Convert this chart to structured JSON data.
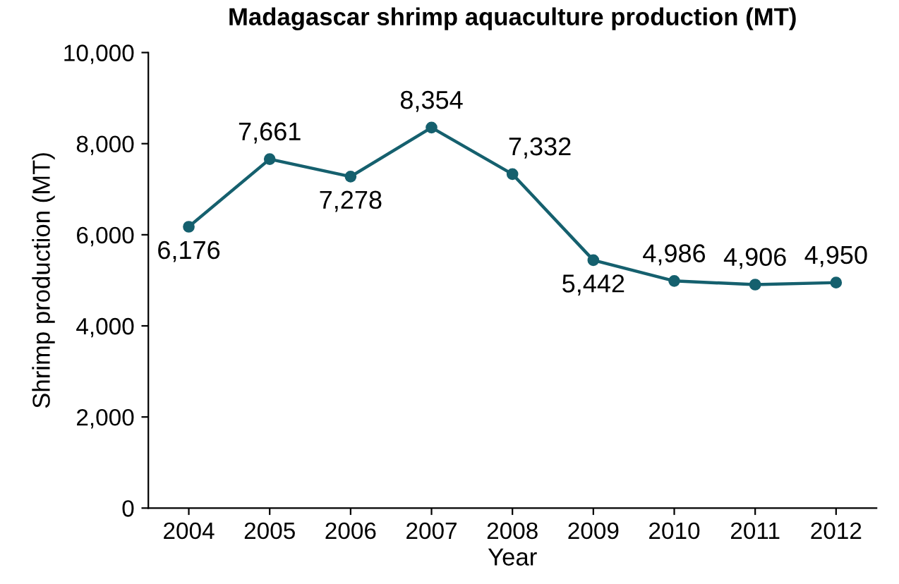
{
  "chart_data": {
    "type": "line",
    "title": "Madagascar shrimp aquaculture production (MT)",
    "xlabel": "Year",
    "ylabel": "Shrimp production (MT)",
    "categories": [
      "2004",
      "2005",
      "2006",
      "2007",
      "2008",
      "2009",
      "2010",
      "2011",
      "2012"
    ],
    "series": [
      {
        "color": "#15606e",
        "values": [
          6176,
          7661,
          7278,
          8354,
          7332,
          5442,
          4986,
          4906,
          4950
        ],
        "value_labels": [
          "6,176",
          "7,661",
          "7,278",
          "8,354",
          "7,332",
          "5,442",
          "4,986",
          "4,906",
          "4,950"
        ]
      }
    ],
    "ylim": [
      0,
      10000
    ],
    "yticks": [
      0,
      {
        "value": 2000,
        "label": "2,000"
      },
      {
        "value": 4000,
        "label": "4,000"
      },
      {
        "value": 6000,
        "label": "6,000"
      },
      {
        "value": 8000,
        "label": "8,000"
      },
      {
        "value": 10000,
        "label": "10,000"
      }
    ],
    "marker": "circle",
    "line_style": "solid",
    "grid": false
  }
}
